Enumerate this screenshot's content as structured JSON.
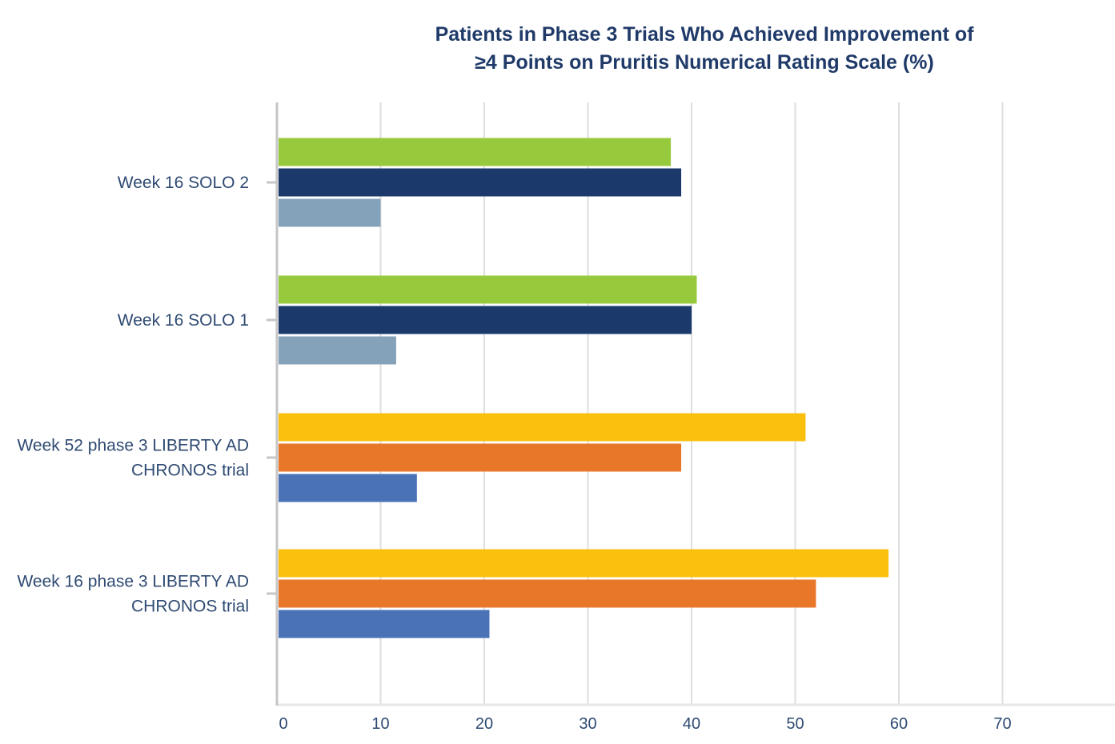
{
  "chart_data": {
    "type": "bar",
    "orientation": "horizontal",
    "title_lines": [
      "Patients in Phase 3 Trials Who Achieved Improvement of",
      "≥4 Points on Pruritis Numerical Rating Scale (%)"
    ],
    "xlabel": "",
    "ylabel": "",
    "xlim": [
      0,
      78
    ],
    "x_ticks": [
      0,
      10,
      20,
      30,
      40,
      50,
      60,
      70
    ],
    "grid": true,
    "legend": "none",
    "groups": [
      {
        "label_lines": [
          "Week 16 SOLO 2"
        ],
        "bars": [
          {
            "value": 38,
            "color": "#97c93d"
          },
          {
            "value": 39,
            "color": "#1b3a6b"
          },
          {
            "value": 10,
            "color": "#85a2bb"
          }
        ]
      },
      {
        "label_lines": [
          "Week 16 SOLO 1"
        ],
        "bars": [
          {
            "value": 40.5,
            "color": "#97c93d"
          },
          {
            "value": 40,
            "color": "#1b3a6b"
          },
          {
            "value": 11.5,
            "color": "#85a2bb"
          }
        ]
      },
      {
        "label_lines": [
          "Week 52 phase 3 LIBERTY AD",
          "CHRONOS trial"
        ],
        "bars": [
          {
            "value": 51,
            "color": "#fbc00d"
          },
          {
            "value": 39,
            "color": "#e8772a"
          },
          {
            "value": 13.5,
            "color": "#4a72b6"
          }
        ]
      },
      {
        "label_lines": [
          "Week 16 phase 3 LIBERTY AD",
          "CHRONOS trial"
        ],
        "bars": [
          {
            "value": 59,
            "color": "#fbc00d"
          },
          {
            "value": 52,
            "color": "#e8772a"
          },
          {
            "value": 20.5,
            "color": "#4a72b6"
          }
        ]
      }
    ],
    "colors": {
      "title": "#1f3a68",
      "label": "#2e4a72",
      "grid": "#dedede",
      "axis": "#c6c6c6"
    }
  }
}
